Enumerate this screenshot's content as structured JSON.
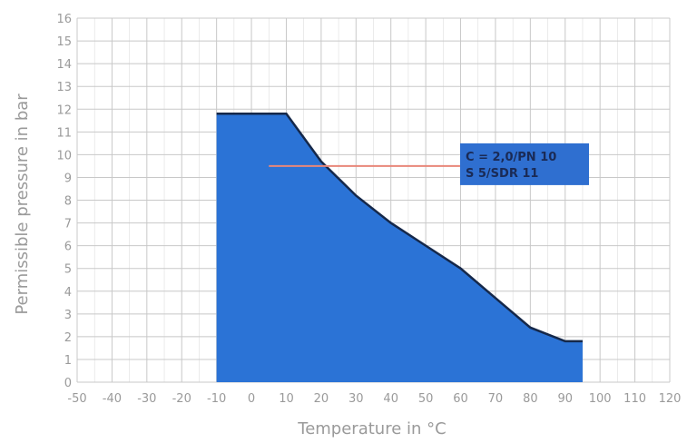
{
  "chart_data": {
    "type": "area",
    "xlabel": "Temperature in °C",
    "ylabel": "Permissible pressure in bar",
    "xlim": [
      -50,
      120
    ],
    "ylim": [
      0,
      16
    ],
    "xticks": [
      -50,
      -40,
      -30,
      -20,
      -10,
      0,
      10,
      20,
      30,
      40,
      50,
      60,
      70,
      80,
      90,
      100,
      110,
      120
    ],
    "yticks": [
      0,
      1,
      2,
      3,
      4,
      5,
      6,
      7,
      8,
      9,
      10,
      11,
      12,
      13,
      14,
      15,
      16
    ],
    "grid": true,
    "series": [
      {
        "name": "C = 2,0/PN 10 S 5/SDR 11",
        "x": [
          -10,
          10,
          20,
          30,
          40,
          50,
          60,
          70,
          80,
          90,
          95
        ],
        "y": [
          11.8,
          11.8,
          9.7,
          8.2,
          7.0,
          6.0,
          5.0,
          3.7,
          2.4,
          1.8,
          1.8
        ]
      }
    ],
    "legend": {
      "lines": [
        "C = 2,0/PN 10",
        "S 5/SDR 11"
      ],
      "anchor": [
        5,
        9.5
      ]
    },
    "colors": {
      "fill": "#2b73d6",
      "line": "#15284a",
      "grid": "#c8c8c8",
      "legend_bg": "#2f6fd0",
      "legend_pointer": "#e8877a",
      "text": "#9a9a9a"
    }
  }
}
